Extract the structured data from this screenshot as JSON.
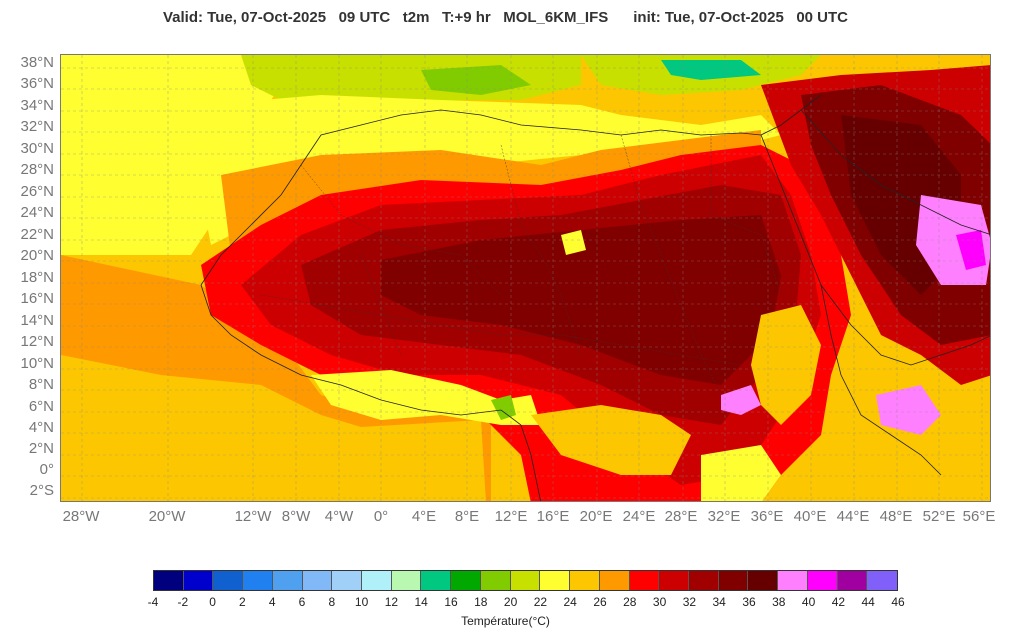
{
  "header": {
    "title": "Valid: Tue, 07-Oct-2025   09 UTC   t2m   T:+9 hr   MOL_6KM_IFS      init: Tue, 07-Oct-2025   00 UTC"
  },
  "map": {
    "lat_labels": [
      "38°N",
      "36°N",
      "34°N",
      "32°N",
      "30°N",
      "28°N",
      "26°N",
      "24°N",
      "22°N",
      "20°N",
      "18°N",
      "16°N",
      "14°N",
      "12°N",
      "10°N",
      "8°N",
      "6°N",
      "4°N",
      "2°N",
      "0°",
      "2°S"
    ],
    "lon_labels": [
      "28°W",
      "20°W",
      "12°W",
      "8°W",
      "4°W",
      "0°",
      "4°E",
      "8°E",
      "12°E",
      "16°E",
      "20°E",
      "24°E",
      "28°E",
      "32°E",
      "36°E",
      "40°E",
      "44°E",
      "48°E",
      "52°E",
      "56°E"
    ],
    "colors": {
      "ocean_warm": "#fcc700",
      "ocean_orange": "#fe9a00",
      "yellow": "#fefe30",
      "yellow_green": "#c8e000",
      "green": "#80cc00",
      "teal": "#00c880",
      "red": "#fe0000",
      "crimson": "#cc0000",
      "dark_red": "#a00000",
      "maroon": "#800000",
      "darkest": "#660000",
      "pink": "#ff80ff",
      "magenta": "#ff00ff"
    }
  },
  "colorbar": {
    "title": "Température(°C)",
    "ticks": [
      "-4",
      "-2",
      "0",
      "2",
      "4",
      "6",
      "8",
      "10",
      "12",
      "14",
      "16",
      "18",
      "20",
      "22",
      "24",
      "26",
      "28",
      "30",
      "32",
      "34",
      "36",
      "38",
      "40",
      "42",
      "44",
      "46"
    ],
    "colors": [
      "#00007f",
      "#0000cc",
      "#1060d0",
      "#2080f0",
      "#50a0f0",
      "#80b8f8",
      "#a0d0f8",
      "#b0f0f8",
      "#b8f8b0",
      "#00c880",
      "#00a800",
      "#80cc00",
      "#c8e000",
      "#fefe30",
      "#fcc700",
      "#fe9a00",
      "#fe0000",
      "#cc0000",
      "#a00000",
      "#800000",
      "#660000",
      "#ff80ff",
      "#ff00ff",
      "#a000a0",
      "#8060f8"
    ]
  }
}
